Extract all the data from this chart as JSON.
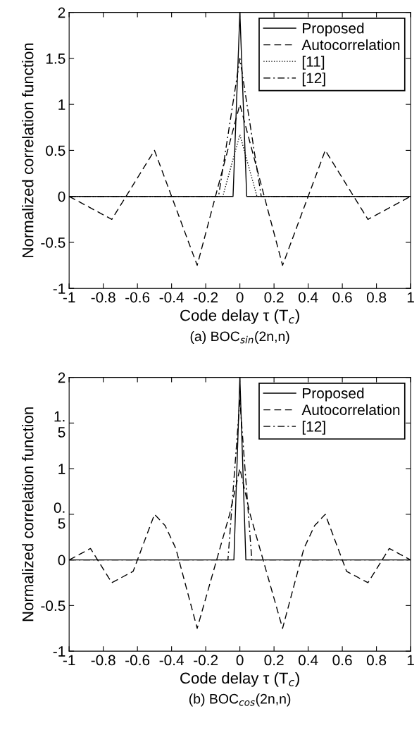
{
  "chart_data": [
    {
      "type": "line",
      "title": "(a) BOC$_{sin}$(2n,n)",
      "xlabel": "Code delay τ (T$_{c}$)",
      "ylabel": "Normalized correlation function",
      "xlim": [
        -1,
        1
      ],
      "ylim": [
        -1,
        2
      ],
      "xticks": [
        -1,
        -0.8,
        -0.6,
        -0.4,
        -0.2,
        0,
        0.2,
        0.4,
        0.6,
        0.8,
        1
      ],
      "yticks": [
        -1,
        -0.5,
        0,
        0.5,
        1,
        1.5,
        2
      ],
      "grid": false,
      "legend": "top right",
      "series": [
        {
          "name": "Proposed",
          "color": "#000000",
          "line_style": "solid",
          "x": [
            -1,
            -0.04,
            0,
            0.04,
            1
          ],
          "values": [
            0,
            0,
            2,
            0,
            0
          ]
        },
        {
          "name": "Autocorrelation",
          "color": "#000000",
          "line_style": "dashed",
          "x": [
            -1,
            -0.75,
            -0.5,
            -0.25,
            0,
            0.25,
            0.5,
            0.75,
            1
          ],
          "values": [
            0,
            -0.25,
            0.5,
            -0.75,
            1,
            -0.75,
            0.5,
            -0.25,
            0
          ]
        },
        {
          "name": "[11]",
          "color": "#000000",
          "line_style": "dotted",
          "x": [
            -1,
            -0.1,
            0,
            0.1,
            1
          ],
          "values": [
            0,
            0,
            0.67,
            0,
            0
          ]
        },
        {
          "name": "[12]",
          "color": "#000000",
          "line_style": "dashdot",
          "x": [
            -1,
            -0.125,
            0,
            0.125,
            1
          ],
          "values": [
            0,
            0,
            1.5,
            0,
            0
          ]
        }
      ]
    },
    {
      "type": "line",
      "title": "(b) BOC$_{cos}$(2n,n)",
      "xlabel": "Code delay τ (T$_{c}$)",
      "ylabel": "Normalized correlation function",
      "xlim": [
        -1,
        1
      ],
      "ylim": [
        -1,
        2
      ],
      "xticks": [
        -1,
        -0.8,
        -0.6,
        -0.4,
        -0.2,
        0,
        0.2,
        0.4,
        0.6,
        0.8,
        1
      ],
      "yticks": [
        -1,
        -0.5,
        0,
        {
          "value": 0.5,
          "label": "0.\n5"
        },
        1,
        {
          "value": 1.5,
          "label": "1.\n5"
        },
        2
      ],
      "grid": false,
      "legend": "top right",
      "series": [
        {
          "name": "Proposed",
          "color": "#000000",
          "line_style": "solid",
          "x": [
            -1,
            -0.035,
            0,
            0.035,
            1
          ],
          "values": [
            0,
            0,
            2,
            0,
            0
          ]
        },
        {
          "name": "Autocorrelation",
          "color": "#000000",
          "line_style": "dashed",
          "x": [
            -1,
            -0.94,
            -0.875,
            -0.75,
            -0.625,
            -0.5,
            -0.4375,
            -0.375,
            -0.25,
            -0.06,
            0,
            0.06,
            0.25,
            0.375,
            0.4375,
            0.5,
            0.625,
            0.75,
            0.875,
            0.94,
            1
          ],
          "values": [
            0,
            0.06,
            0.125,
            -0.25,
            -0.125,
            0.5,
            0.375,
            0.125,
            -0.75,
            0.5,
            1,
            0.5,
            -0.75,
            0.125,
            0.375,
            0.5,
            -0.125,
            -0.25,
            0.125,
            0.06,
            0
          ]
        },
        {
          "name": "[12]",
          "color": "#000000",
          "line_style": "dashdot",
          "x": [
            -1,
            -0.07,
            0,
            0.07,
            1
          ],
          "values": [
            0,
            0,
            1.75,
            0,
            0
          ]
        }
      ]
    }
  ]
}
